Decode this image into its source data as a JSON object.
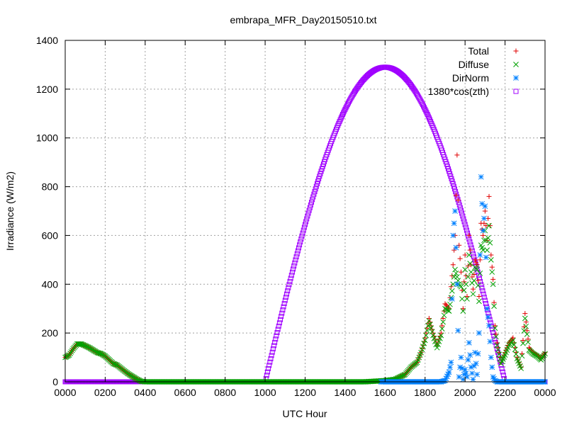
{
  "chart_data": {
    "type": "scatter",
    "title": "embrapa_MFR_Day20150510.txt",
    "xlabel": "UTC Hour",
    "ylabel": "Irradiance (W/m2)",
    "xlim": [
      0,
      24
    ],
    "ylim": [
      0,
      1400
    ],
    "xticks": [
      {
        "v": 0,
        "label": "0000"
      },
      {
        "v": 2,
        "label": "0200"
      },
      {
        "v": 4,
        "label": "0400"
      },
      {
        "v": 6,
        "label": "0600"
      },
      {
        "v": 8,
        "label": "0800"
      },
      {
        "v": 10,
        "label": "1000"
      },
      {
        "v": 12,
        "label": "1200"
      },
      {
        "v": 14,
        "label": "1400"
      },
      {
        "v": 16,
        "label": "1600"
      },
      {
        "v": 18,
        "label": "1800"
      },
      {
        "v": 20,
        "label": "2000"
      },
      {
        "v": 22,
        "label": "2200"
      },
      {
        "v": 24,
        "label": "0000"
      }
    ],
    "yticks": [
      0,
      200,
      400,
      600,
      800,
      1000,
      1200,
      1400
    ],
    "grid": true,
    "legend_position": "top-right",
    "series": [
      {
        "name": "Total",
        "marker": "plus",
        "color": "#e00000",
        "points": [
          [
            0.0,
            100
          ],
          [
            0.2,
            110
          ],
          [
            0.4,
            135
          ],
          [
            0.6,
            155
          ],
          [
            0.8,
            155
          ],
          [
            1.0,
            148
          ],
          [
            1.2,
            140
          ],
          [
            1.4,
            130
          ],
          [
            1.6,
            120
          ],
          [
            1.8,
            115
          ],
          [
            2.0,
            105
          ],
          [
            2.2,
            90
          ],
          [
            2.4,
            75
          ],
          [
            2.6,
            68
          ],
          [
            2.8,
            55
          ],
          [
            3.0,
            42
          ],
          [
            3.2,
            30
          ],
          [
            3.4,
            20
          ],
          [
            3.6,
            10
          ],
          [
            3.8,
            2
          ],
          [
            4.0,
            0
          ],
          [
            5.0,
            0
          ],
          [
            6.0,
            0
          ],
          [
            7.0,
            0
          ],
          [
            8.0,
            0
          ],
          [
            9.0,
            0
          ],
          [
            10.0,
            0
          ],
          [
            11.0,
            0
          ],
          [
            12.0,
            0
          ],
          [
            13.0,
            0
          ],
          [
            14.0,
            0
          ],
          [
            15.0,
            0
          ],
          [
            16.0,
            5
          ],
          [
            16.5,
            10
          ],
          [
            17.0,
            30
          ],
          [
            17.3,
            60
          ],
          [
            17.6,
            80
          ],
          [
            17.8,
            120
          ],
          [
            18.0,
            180
          ],
          [
            18.2,
            260
          ],
          [
            18.4,
            200
          ],
          [
            18.6,
            150
          ],
          [
            18.8,
            200
          ],
          [
            19.0,
            320
          ],
          [
            19.2,
            300
          ],
          [
            19.4,
            480
          ],
          [
            19.5,
            600
          ],
          [
            19.6,
            930
          ],
          [
            19.7,
            560
          ],
          [
            19.8,
            450
          ],
          [
            19.9,
            300
          ],
          [
            20.0,
            520
          ],
          [
            20.1,
            350
          ],
          [
            20.2,
            600
          ],
          [
            20.3,
            480
          ],
          [
            20.4,
            380
          ],
          [
            20.5,
            500
          ],
          [
            20.6,
            480
          ],
          [
            20.7,
            350
          ],
          [
            20.8,
            650
          ],
          [
            20.9,
            600
          ],
          [
            21.0,
            700
          ],
          [
            21.1,
            580
          ],
          [
            21.2,
            760
          ],
          [
            21.3,
            520
          ],
          [
            21.4,
            420
          ],
          [
            21.5,
            230
          ],
          [
            21.6,
            160
          ],
          [
            21.8,
            80
          ],
          [
            22.0,
            120
          ],
          [
            22.2,
            160
          ],
          [
            22.4,
            180
          ],
          [
            22.6,
            100
          ],
          [
            22.8,
            60
          ],
          [
            23.0,
            280
          ],
          [
            23.2,
            140
          ],
          [
            23.4,
            120
          ],
          [
            23.6,
            110
          ],
          [
            23.8,
            95
          ],
          [
            24.0,
            120
          ]
        ]
      },
      {
        "name": "Diffuse",
        "marker": "cross",
        "color": "#00a000",
        "points": [
          [
            0.0,
            100
          ],
          [
            0.2,
            110
          ],
          [
            0.4,
            135
          ],
          [
            0.6,
            155
          ],
          [
            0.8,
            155
          ],
          [
            1.0,
            148
          ],
          [
            1.2,
            140
          ],
          [
            1.4,
            130
          ],
          [
            1.6,
            120
          ],
          [
            1.8,
            115
          ],
          [
            2.0,
            105
          ],
          [
            2.2,
            90
          ],
          [
            2.4,
            75
          ],
          [
            2.6,
            68
          ],
          [
            2.8,
            55
          ],
          [
            3.0,
            42
          ],
          [
            3.2,
            30
          ],
          [
            3.4,
            20
          ],
          [
            3.6,
            10
          ],
          [
            3.8,
            2
          ],
          [
            4.0,
            0
          ],
          [
            5.0,
            0
          ],
          [
            6.0,
            0
          ],
          [
            7.0,
            0
          ],
          [
            8.0,
            0
          ],
          [
            9.0,
            0
          ],
          [
            10.0,
            0
          ],
          [
            11.0,
            0
          ],
          [
            12.0,
            0
          ],
          [
            13.0,
            0
          ],
          [
            14.0,
            0
          ],
          [
            15.0,
            0
          ],
          [
            16.0,
            5
          ],
          [
            16.5,
            10
          ],
          [
            17.0,
            30
          ],
          [
            17.3,
            60
          ],
          [
            17.6,
            80
          ],
          [
            17.8,
            120
          ],
          [
            18.0,
            170
          ],
          [
            18.2,
            250
          ],
          [
            18.4,
            190
          ],
          [
            18.6,
            140
          ],
          [
            18.8,
            190
          ],
          [
            19.0,
            300
          ],
          [
            19.2,
            290
          ],
          [
            19.4,
            400
          ],
          [
            19.5,
            460
          ],
          [
            19.6,
            430
          ],
          [
            19.7,
            400
          ],
          [
            19.8,
            390
          ],
          [
            19.9,
            290
          ],
          [
            20.0,
            460
          ],
          [
            20.1,
            340
          ],
          [
            20.2,
            520
          ],
          [
            20.3,
            450
          ],
          [
            20.4,
            360
          ],
          [
            20.5,
            470
          ],
          [
            20.6,
            460
          ],
          [
            20.7,
            330
          ],
          [
            20.8,
            560
          ],
          [
            20.9,
            540
          ],
          [
            21.0,
            620
          ],
          [
            21.1,
            540
          ],
          [
            21.2,
            640
          ],
          [
            21.3,
            500
          ],
          [
            21.4,
            400
          ],
          [
            21.5,
            220
          ],
          [
            21.6,
            150
          ],
          [
            21.8,
            75
          ],
          [
            22.0,
            110
          ],
          [
            22.2,
            150
          ],
          [
            22.4,
            170
          ],
          [
            22.6,
            95
          ],
          [
            22.8,
            55
          ],
          [
            23.0,
            260
          ],
          [
            23.2,
            130
          ],
          [
            23.4,
            115
          ],
          [
            23.6,
            105
          ],
          [
            23.8,
            90
          ],
          [
            24.0,
            115
          ]
        ]
      },
      {
        "name": "DirNorm",
        "marker": "star",
        "color": "#0080ff",
        "points": [
          [
            15.8,
            0
          ],
          [
            16.0,
            0
          ],
          [
            16.5,
            0
          ],
          [
            17.0,
            0
          ],
          [
            17.5,
            0
          ],
          [
            18.0,
            0
          ],
          [
            18.5,
            0
          ],
          [
            18.8,
            0
          ],
          [
            19.0,
            5
          ],
          [
            19.2,
            40
          ],
          [
            19.3,
            80
          ],
          [
            19.4,
            600
          ],
          [
            19.5,
            700
          ],
          [
            19.6,
            400
          ],
          [
            19.7,
            20
          ],
          [
            19.8,
            100
          ],
          [
            19.9,
            10
          ],
          [
            20.0,
            50
          ],
          [
            20.1,
            20
          ],
          [
            20.2,
            160
          ],
          [
            20.3,
            60
          ],
          [
            20.4,
            10
          ],
          [
            20.5,
            120
          ],
          [
            20.6,
            30
          ],
          [
            20.7,
            200
          ],
          [
            20.8,
            840
          ],
          [
            20.9,
            620
          ],
          [
            21.0,
            720
          ],
          [
            21.1,
            300
          ],
          [
            21.2,
            230
          ],
          [
            21.3,
            100
          ],
          [
            21.4,
            20
          ],
          [
            21.5,
            5
          ],
          [
            21.6,
            0
          ],
          [
            22.0,
            0
          ],
          [
            22.5,
            0
          ],
          [
            23.0,
            0
          ],
          [
            23.5,
            0
          ],
          [
            24.0,
            0
          ]
        ]
      },
      {
        "name": "1380*cos(zth)",
        "marker": "square",
        "color": "#a000ff",
        "curve": {
          "t_rise": 10.0,
          "t_set": 22.0,
          "t_peak": 16.0,
          "peak": 1290
        }
      }
    ]
  }
}
